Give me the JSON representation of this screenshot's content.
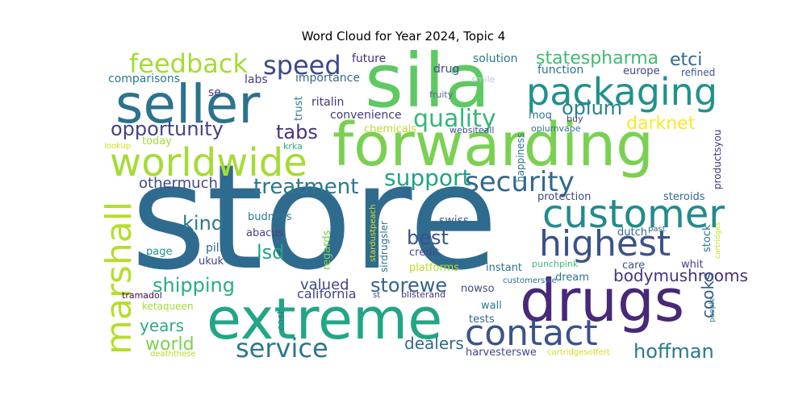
{
  "chart_data": {
    "type": "wordcloud",
    "title": "Word Cloud for Year 2024, Topic 4",
    "words": [
      {
        "text": "store",
        "color": "#2f6b8e"
      },
      {
        "text": "sila",
        "color": "#5ec962"
      },
      {
        "text": "forwarding",
        "color": "#7ad151"
      },
      {
        "text": "seller",
        "color": "#2c728e"
      },
      {
        "text": "drugs",
        "color": "#482878"
      },
      {
        "text": "extreme",
        "color": "#21a685"
      },
      {
        "text": "packaging",
        "color": "#21918c"
      },
      {
        "text": "worldwide",
        "color": "#a5db36"
      },
      {
        "text": "customer",
        "color": "#238a8d"
      },
      {
        "text": "highest",
        "color": "#3b528b"
      },
      {
        "text": "contact",
        "color": "#3b528b"
      },
      {
        "text": "marshall",
        "color": "#b5de2b"
      },
      {
        "text": "security",
        "color": "#31688e"
      },
      {
        "text": "service",
        "color": "#2a788e"
      },
      {
        "text": "feedback",
        "color": "#a5db36"
      },
      {
        "text": "speed",
        "color": "#3e4989"
      },
      {
        "text": "quality",
        "color": "#35b779"
      },
      {
        "text": "support",
        "color": "#20a386"
      },
      {
        "text": "opportunity",
        "color": "#414487"
      },
      {
        "text": "treatment",
        "color": "#2a788e"
      },
      {
        "text": "shipping",
        "color": "#27ad81"
      },
      {
        "text": "hoffman",
        "color": "#2a788e"
      },
      {
        "text": "storewe",
        "color": "#33638d"
      },
      {
        "text": "bodymushrooms",
        "color": "#46327e"
      },
      {
        "text": "opium",
        "color": "#26828e"
      },
      {
        "text": "statespharma",
        "color": "#3dbc74"
      },
      {
        "text": "etci",
        "color": "#31688e"
      },
      {
        "text": "darknet",
        "color": "#fde725"
      },
      {
        "text": "tabs",
        "color": "#46327e"
      },
      {
        "text": "best",
        "color": "#3b528b"
      },
      {
        "text": "lsd",
        "color": "#20a386"
      },
      {
        "text": "kind",
        "color": "#2a788e"
      },
      {
        "text": "years",
        "color": "#27ad81"
      },
      {
        "text": "world",
        "color": "#7ad151"
      },
      {
        "text": "valued",
        "color": "#3e4989"
      },
      {
        "text": "cooks",
        "color": "#355f8d"
      },
      {
        "text": "dealers",
        "color": "#31688e"
      },
      {
        "text": "othermuch",
        "color": "#3e4989"
      },
      {
        "text": "california",
        "color": "#404688"
      },
      {
        "text": "future",
        "color": "#472d7b"
      },
      {
        "text": "solution",
        "color": "#2a788e"
      },
      {
        "text": "function",
        "color": "#2c728e"
      },
      {
        "text": "europe",
        "color": "#404688"
      },
      {
        "text": "comparisons",
        "color": "#2a788e"
      },
      {
        "text": "labs",
        "color": "#433e85"
      },
      {
        "text": "importance",
        "color": "#31688e"
      },
      {
        "text": "drug",
        "color": "#3e4989"
      },
      {
        "text": "refined",
        "color": "#3b528b"
      },
      {
        "text": "se",
        "color": "#433e85"
      },
      {
        "text": "trust",
        "color": "#2a788e"
      },
      {
        "text": "ritalin",
        "color": "#46327e"
      },
      {
        "text": "fruity",
        "color": "#5b5f8c"
      },
      {
        "text": "smile",
        "color": "#bfc7d3"
      },
      {
        "text": "buy",
        "color": "#3e4989"
      },
      {
        "text": "convenience",
        "color": "#443983"
      },
      {
        "text": "moq",
        "color": "#2a788e"
      },
      {
        "text": "chemicals",
        "color": "#b5de2b"
      },
      {
        "text": "websiteall",
        "color": "#3b528b"
      },
      {
        "text": "opiumvape",
        "color": "#2c728e"
      },
      {
        "text": "today",
        "color": "#a5db36"
      },
      {
        "text": "lookup",
        "color": "#d2e21b"
      },
      {
        "text": "krka",
        "color": "#27ad81"
      },
      {
        "text": "happiness",
        "color": "#2c728e"
      },
      {
        "text": "productsyou",
        "color": "#46327e"
      },
      {
        "text": "chance",
        "color": "#2c728e"
      },
      {
        "text": "protection",
        "color": "#3e4989"
      },
      {
        "text": "steroids",
        "color": "#31688e"
      },
      {
        "text": "budness",
        "color": "#2a788e"
      },
      {
        "text": "abacus",
        "color": "#433e85"
      },
      {
        "text": "regards",
        "color": "#7ad151"
      },
      {
        "text": "sirdrugsler",
        "color": "#2c728e"
      },
      {
        "text": "stardustpeach",
        "color": "#d2e21b"
      },
      {
        "text": "swiss",
        "color": "#33638d"
      },
      {
        "text": "past",
        "color": "#31688e"
      },
      {
        "text": "dutch",
        "color": "#31688e"
      },
      {
        "text": "cartridges",
        "color": "#c8e020"
      },
      {
        "text": "stock",
        "color": "#2a788e"
      },
      {
        "text": "pill",
        "color": "#31688e"
      },
      {
        "text": "page",
        "color": "#21918c"
      },
      {
        "text": "ukuk",
        "color": "#414487"
      },
      {
        "text": "credit",
        "color": "#3e4989"
      },
      {
        "text": "platforms",
        "color": "#b5de2b"
      },
      {
        "text": "instant",
        "color": "#2c728e"
      },
      {
        "text": "punchpink",
        "color": "#3dbc74"
      },
      {
        "text": "care",
        "color": "#3b528b"
      },
      {
        "text": "whit",
        "color": "#433e85"
      },
      {
        "text": "dream",
        "color": "#2c728e"
      },
      {
        "text": "customerswe",
        "color": "#2c728e"
      },
      {
        "text": "nowso",
        "color": "#3e4989"
      },
      {
        "text": "tramadol",
        "color": "#440154"
      },
      {
        "text": "st",
        "color": "#3e4989"
      },
      {
        "text": "blisterand",
        "color": "#46327e"
      },
      {
        "text": "ketaqueen",
        "color": "#a5db36"
      },
      {
        "text": "people",
        "color": "#2c728e"
      },
      {
        "text": "cost",
        "color": "#2a788e"
      },
      {
        "text": "wall",
        "color": "#2a788e"
      },
      {
        "text": "tests",
        "color": "#31688e"
      },
      {
        "text": "harvesterswe",
        "color": "#3e4989"
      },
      {
        "text": "deaththese",
        "color": "#b5de2b"
      },
      {
        "text": "cartridgesoffert",
        "color": "#d2e21b"
      }
    ]
  }
}
